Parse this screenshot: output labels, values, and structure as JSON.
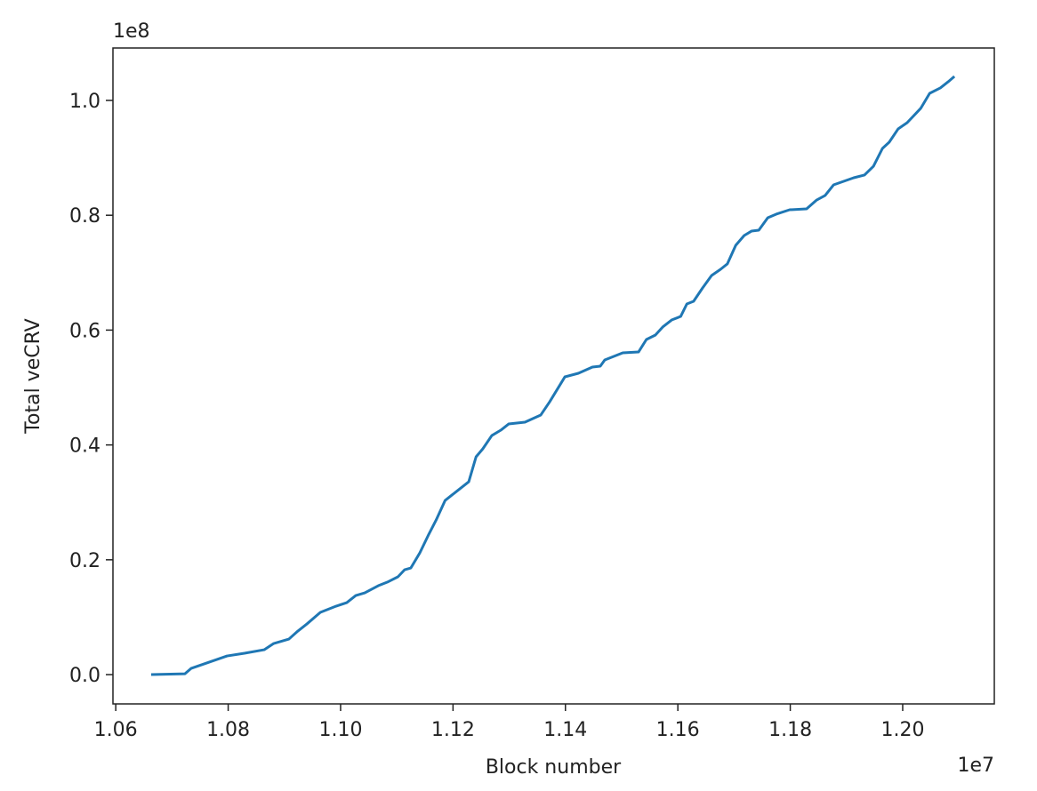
{
  "chart_data": {
    "type": "line",
    "xlabel": "Block number",
    "ylabel": "Total veCRV",
    "x_offset_label": "1e7",
    "y_offset_label": "1e8",
    "x": [
      1.0663,
      1.0723,
      1.0734,
      1.0766,
      1.0798,
      1.0829,
      1.0864,
      1.0881,
      1.0908,
      1.0924,
      1.094,
      1.0964,
      1.0992,
      1.1011,
      1.1027,
      1.1043,
      1.1067,
      1.1083,
      1.1102,
      1.1114,
      1.1125,
      1.1141,
      1.1157,
      1.117,
      1.1186,
      1.1204,
      1.1228,
      1.1241,
      1.1253,
      1.1269,
      1.1285,
      1.1299,
      1.1328,
      1.1356,
      1.1372,
      1.1399,
      1.1423,
      1.1448,
      1.1462,
      1.147,
      1.1486,
      1.1502,
      1.153,
      1.1544,
      1.156,
      1.1573,
      1.1589,
      1.1605,
      1.1616,
      1.1628,
      1.1644,
      1.166,
      1.1676,
      1.1688,
      1.1703,
      1.1718,
      1.1731,
      1.1744,
      1.176,
      1.1775,
      1.1799,
      1.1829,
      1.1847,
      1.1862,
      1.1877,
      1.1913,
      1.1932,
      1.1948,
      1.1964,
      1.1976,
      1.1992,
      1.2008,
      1.2032,
      1.2048,
      1.2067,
      1.2081,
      1.2092
    ],
    "series": [
      {
        "name": "Total veCRV",
        "color": "#1f77b4",
        "values": [
          0,
          0.0015,
          0.0108,
          0.0217,
          0.0325,
          0.0372,
          0.0433,
          0.0542,
          0.0619,
          0.0759,
          0.0882,
          0.1084,
          0.1192,
          0.1254,
          0.1378,
          0.1424,
          0.1548,
          0.161,
          0.1703,
          0.1827,
          0.1858,
          0.2121,
          0.2446,
          0.2693,
          0.3034,
          0.3173,
          0.3359,
          0.3793,
          0.3932,
          0.4164,
          0.4257,
          0.4365,
          0.4396,
          0.452,
          0.4752,
          0.5186,
          0.5248,
          0.5356,
          0.5372,
          0.548,
          0.5542,
          0.5604,
          0.5619,
          0.5836,
          0.5913,
          0.6053,
          0.6176,
          0.6238,
          0.6455,
          0.6502,
          0.6734,
          0.695,
          0.7059,
          0.7152,
          0.7477,
          0.7647,
          0.7724,
          0.774,
          0.7957,
          0.8019,
          0.8096,
          0.8111,
          0.8266,
          0.8344,
          0.8529,
          0.8653,
          0.87,
          0.8854,
          0.9164,
          0.9272,
          0.9505,
          0.9613,
          0.9861,
          1.0124,
          1.0217,
          1.0325,
          1.0418
        ]
      }
    ],
    "xlim": [
      1.0595,
      1.2163
    ],
    "ylim": [
      -0.051,
      1.0913
    ],
    "xticks": [
      1.06,
      1.08,
      {
        "value": 1.1,
        "label": "1.10"
      },
      1.12,
      1.14,
      1.16,
      1.18,
      {
        "value": 1.2,
        "label": "1.20"
      }
    ],
    "yticks": [
      {
        "value": 0,
        "label": "0.0"
      },
      0.2,
      0.4,
      0.6,
      0.8,
      {
        "value": 1,
        "label": "1.0"
      }
    ],
    "grid": false
  }
}
